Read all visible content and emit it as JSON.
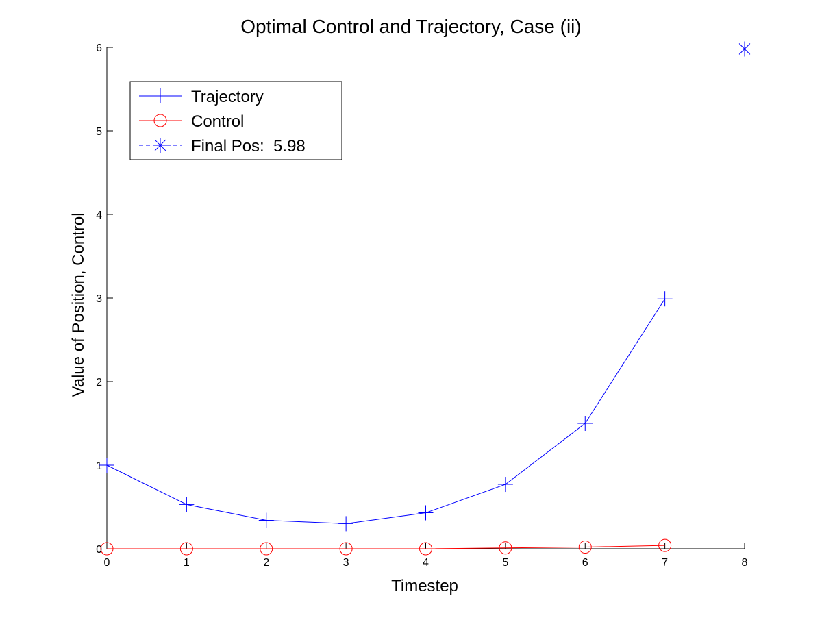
{
  "chart_data": {
    "type": "line",
    "title": "Optimal Control and Trajectory, Case (ii)",
    "xlabel": "Timestep",
    "ylabel": "Value of Position, Control",
    "xlim": [
      0,
      8
    ],
    "ylim": [
      0,
      6
    ],
    "xticks": [
      "0",
      "1",
      "2",
      "3",
      "4",
      "5",
      "6",
      "7",
      "8"
    ],
    "yticks": [
      "0",
      "1",
      "2",
      "3",
      "4",
      "5",
      "6"
    ],
    "grid": false,
    "legend_position": "top-left",
    "series": [
      {
        "name": "Trajectory",
        "marker": "plus",
        "line": "solid",
        "color": "#0000ff",
        "x": [
          0,
          1,
          2,
          3,
          4,
          5,
          6,
          7
        ],
        "values": [
          1.0,
          0.53,
          0.34,
          0.3,
          0.43,
          0.77,
          1.5,
          2.99
        ]
      },
      {
        "name": "Control",
        "marker": "circle",
        "line": "solid",
        "color": "#ff0000",
        "x": [
          0,
          1,
          2,
          3,
          4,
          5,
          6,
          7
        ],
        "values": [
          0.0,
          0.0,
          0.0,
          0.0,
          0.0,
          0.01,
          0.02,
          0.04
        ]
      },
      {
        "name": "Final Pos:  5.98",
        "marker": "asterisk",
        "line": "dashed",
        "color": "#0000ff",
        "x": [
          8
        ],
        "values": [
          5.98
        ]
      }
    ]
  }
}
